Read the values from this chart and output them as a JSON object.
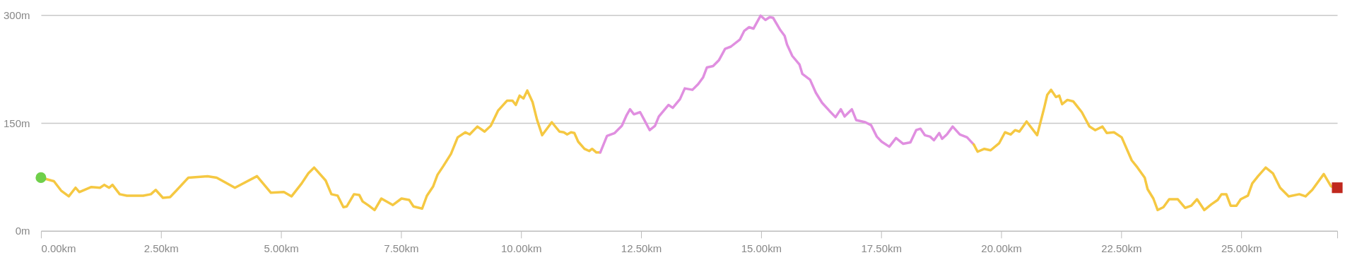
{
  "chart_data": {
    "type": "line",
    "xlim": [
      0,
      27.0
    ],
    "ylim": [
      0,
      300
    ],
    "xticks": [
      {
        "value": 0,
        "label": "0.00km"
      },
      {
        "value": 2.5,
        "label": "2.50km"
      },
      {
        "value": 5,
        "label": "5.00km"
      },
      {
        "value": 7.5,
        "label": "7.50km"
      },
      {
        "value": 10,
        "label": "10.00km"
      },
      {
        "value": 12.5,
        "label": "12.50km"
      },
      {
        "value": 15,
        "label": "15.00km"
      },
      {
        "value": 17.5,
        "label": "17.50km"
      },
      {
        "value": 20,
        "label": "20.00km"
      },
      {
        "value": 22.5,
        "label": "22.50km"
      },
      {
        "value": 25,
        "label": "25.00km"
      },
      {
        "value": 27.0,
        "label": null
      }
    ],
    "yticks": [
      {
        "value": 0,
        "label": "0m"
      },
      {
        "value": 150,
        "label": "150m"
      },
      {
        "value": 300,
        "label": "300m"
      }
    ],
    "grid": "y",
    "line_style": "solid",
    "series": [
      {
        "color": "#f5c842",
        "x": [
          0,
          0.27,
          0.42,
          0.58,
          0.72,
          0.8,
          1.05,
          1.23,
          1.32,
          1.42,
          1.49,
          1.64,
          1.79,
          2.13,
          2.29,
          2.39,
          2.54,
          2.69,
          2.82,
          3.07,
          3.47,
          3.66,
          4.04,
          4.5,
          4.79,
          5.06,
          5.22,
          5.43,
          5.57,
          5.69,
          5.93,
          6.05,
          6.18,
          6.3,
          6.37,
          6.52,
          6.63,
          6.7,
          6.83,
          6.95,
          7.09,
          7.33,
          7.51,
          7.67,
          7.76,
          7.94,
          8.04,
          8.17,
          8.26,
          8.38,
          8.54,
          8.68,
          8.84,
          8.93,
          9.09,
          9.24,
          9.37,
          9.52,
          9.71,
          9.82,
          9.89,
          9.97,
          10.05,
          10.13,
          10.24,
          10.33,
          10.44,
          10.64,
          10.8,
          10.89,
          10.96,
          11.04,
          11.11,
          11.19,
          11.32,
          11.42,
          11.48,
          11.57,
          11.65
        ],
        "values": [
          74,
          69,
          56,
          48,
          60,
          54,
          61,
          60,
          64,
          60,
          64,
          51,
          49,
          49,
          51,
          57,
          46,
          47,
          56,
          74,
          76,
          74,
          60,
          76,
          53,
          54,
          48,
          66,
          80,
          88,
          70,
          51,
          49,
          33,
          34,
          51,
          50,
          41,
          35,
          29,
          45,
          36,
          45,
          43,
          34,
          31,
          49,
          62,
          78,
          90,
          107,
          130,
          137,
          134,
          145,
          138,
          146,
          167,
          181,
          181,
          175,
          188,
          184,
          195,
          179,
          155,
          133,
          151,
          138,
          137,
          134,
          137,
          136,
          124,
          114,
          111,
          114,
          109,
          109
        ]
      },
      {
        "color": "#e08fe0",
        "x": [
          11.65,
          11.79,
          11.95,
          12.1,
          12.2,
          12.27,
          12.35,
          12.48,
          12.56,
          12.68,
          12.79,
          12.87,
          13.07,
          13.16,
          13.31,
          13.41,
          13.57,
          13.69,
          13.79,
          13.87,
          14.0,
          14.12,
          14.25,
          14.37,
          14.56,
          14.65,
          14.75,
          14.84,
          14.99,
          15.09,
          15.18,
          15.25,
          15.4,
          15.49,
          15.54,
          15.65,
          15.8,
          15.86,
          16.02,
          16.14,
          16.27,
          16.42,
          16.55,
          16.66,
          16.74,
          16.89,
          16.98,
          17.17,
          17.29,
          17.41,
          17.51,
          17.67,
          17.81,
          17.96,
          18.11,
          18.23,
          18.32,
          18.41,
          18.52,
          18.6,
          18.71,
          18.77,
          18.87,
          18.99,
          19.14,
          19.29,
          19.43
        ],
        "values": [
          109,
          132,
          136,
          146,
          161,
          169,
          162,
          165,
          155,
          140,
          146,
          159,
          175,
          171,
          183,
          198,
          196,
          204,
          213,
          227,
          229,
          237,
          253,
          256,
          266,
          278,
          283,
          281,
          299,
          293,
          297,
          296,
          279,
          271,
          259,
          243,
          231,
          218,
          210,
          192,
          178,
          167,
          158,
          169,
          159,
          169,
          154,
          151,
          147,
          131,
          124,
          117,
          129,
          121,
          123,
          140,
          142,
          133,
          131,
          126,
          136,
          128,
          134,
          145,
          134,
          130,
          120
        ]
      },
      {
        "color": "#f5c842",
        "x": [
          19.43,
          19.51,
          19.65,
          19.78,
          19.96,
          20.08,
          20.2,
          20.29,
          20.38,
          20.53,
          20.75,
          20.9,
          20.96,
          21.04,
          21.14,
          21.21,
          21.27,
          21.38,
          21.5,
          21.68,
          21.84,
          21.96,
          22.11,
          22.2,
          22.35,
          22.51,
          22.72,
          22.84,
          22.99,
          23.05,
          23.17,
          23.26,
          23.38,
          23.5,
          23.68,
          23.83,
          23.96,
          24.08,
          24.23,
          24.38,
          24.51,
          24.59,
          24.69,
          24.78,
          24.9,
          24.99,
          25.14,
          25.23,
          25.35,
          25.51,
          25.66,
          25.81,
          25.99,
          26.21,
          26.34,
          26.48,
          26.72,
          26.87,
          27.0
        ],
        "values": [
          120,
          110,
          114,
          112,
          122,
          137,
          134,
          140,
          138,
          152,
          133,
          172,
          189,
          196,
          186,
          188,
          176,
          182,
          180,
          165,
          145,
          140,
          145,
          136,
          137,
          130,
          98,
          88,
          74,
          58,
          45,
          29,
          33,
          44,
          44,
          32,
          35,
          44,
          29,
          37,
          43,
          51,
          51,
          35,
          35,
          44,
          49,
          66,
          76,
          88,
          80,
          60,
          48,
          51,
          48,
          57,
          79,
          62,
          60
        ]
      },
      {
        "type": "scatter",
        "marker": "circle",
        "color": "#6fcf4a",
        "x": [
          0
        ],
        "values": [
          74
        ]
      },
      {
        "type": "scatter",
        "marker": "square",
        "color": "#c0281e",
        "x": [
          27.0
        ],
        "values": [
          60
        ]
      }
    ]
  }
}
